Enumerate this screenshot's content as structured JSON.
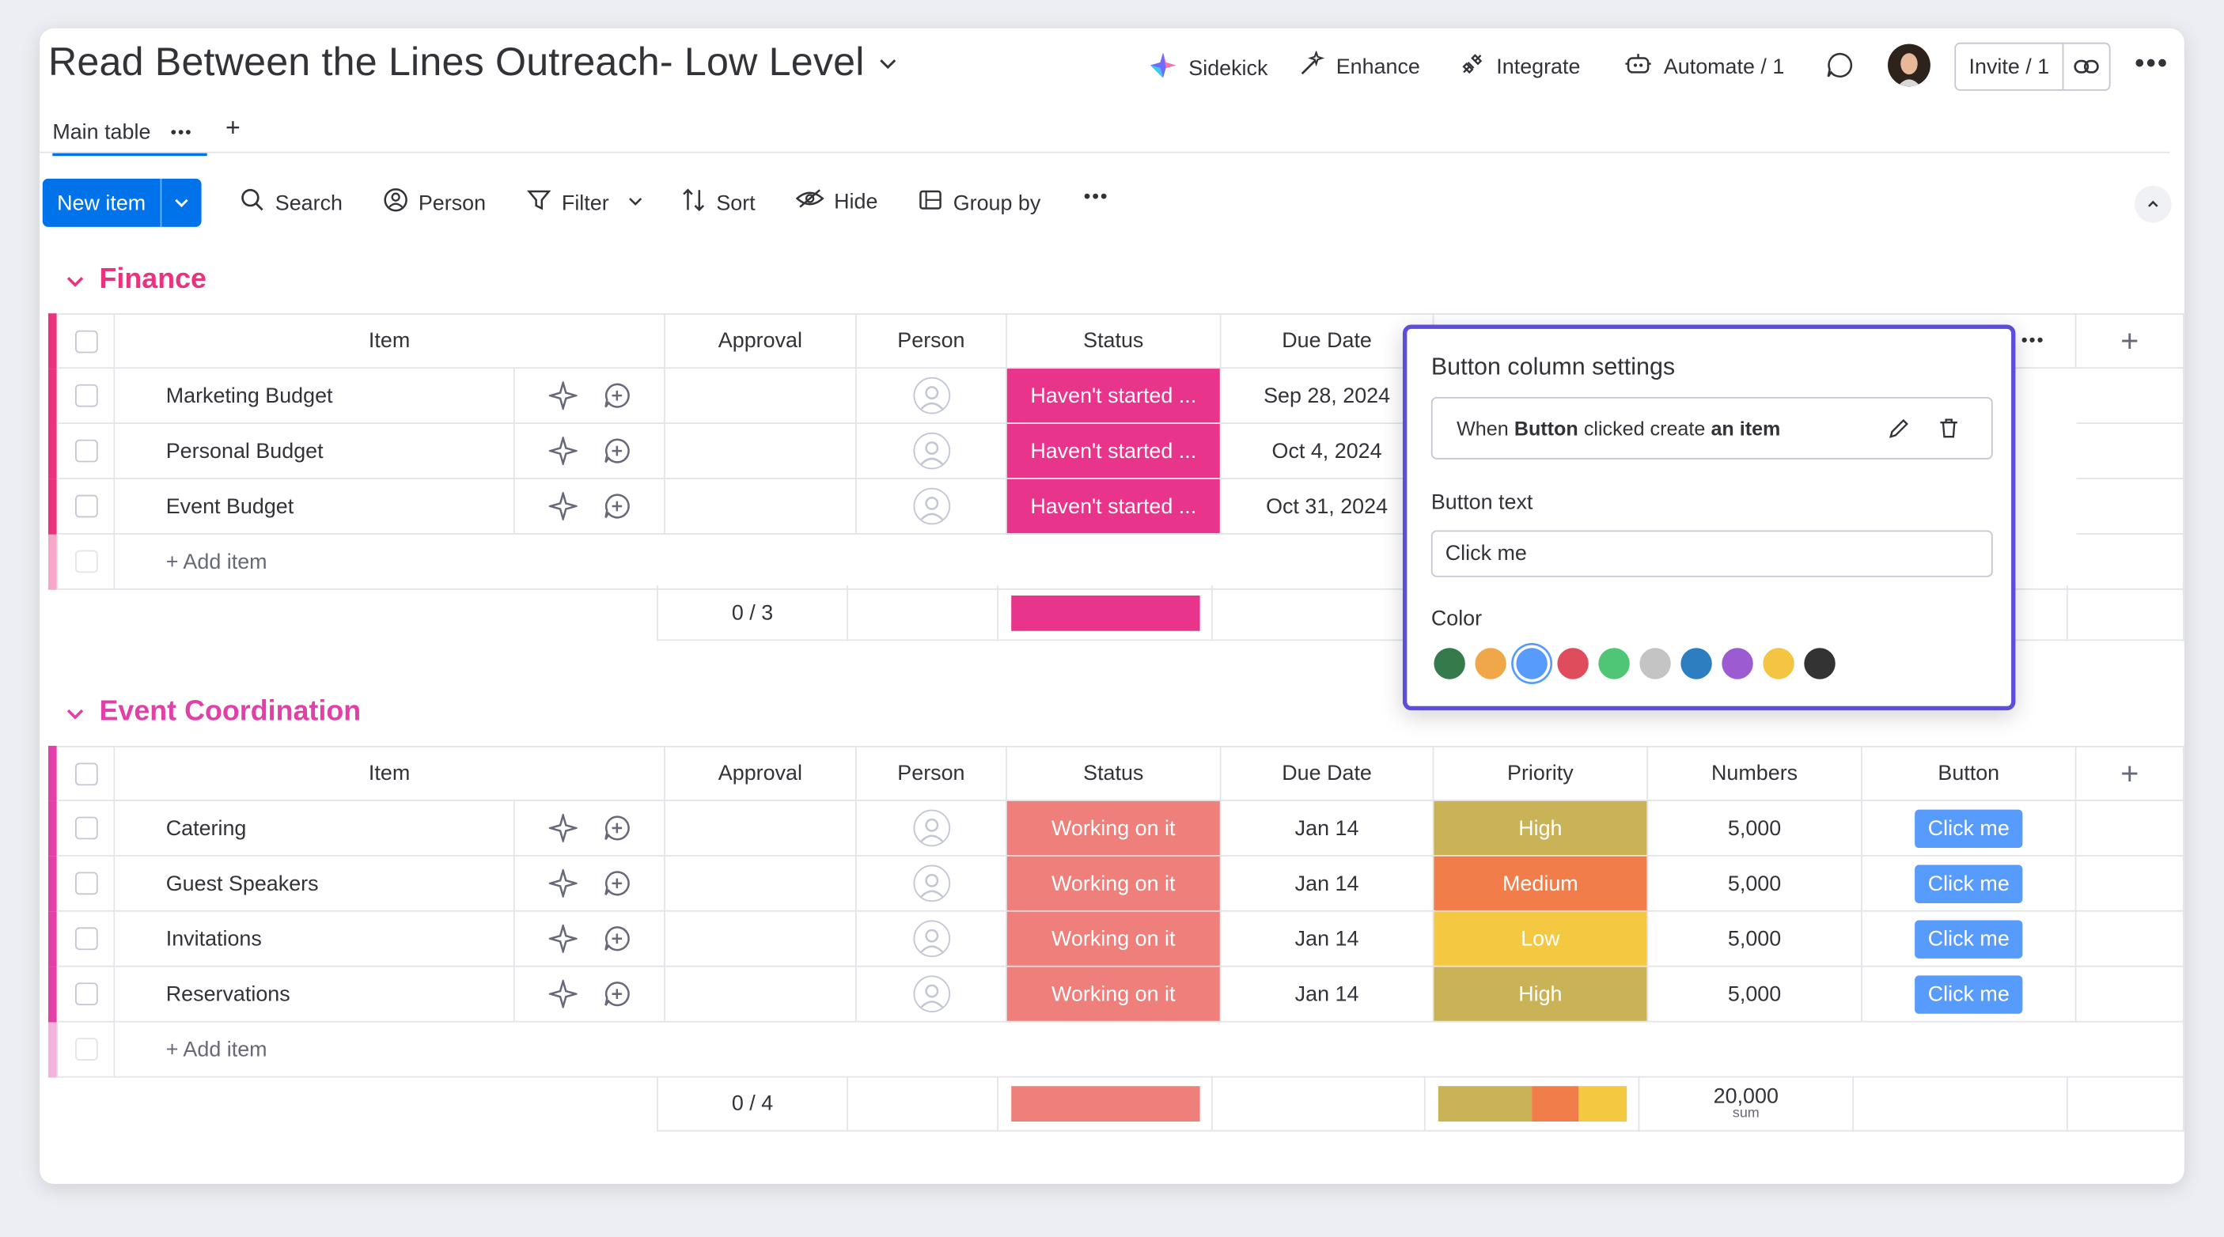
{
  "board": {
    "title": "Read Between the Lines Outreach- Low Level"
  },
  "toolbar_top": {
    "sidekick": "Sidekick",
    "enhance": "Enhance",
    "integrate": "Integrate",
    "automate": "Automate / 1",
    "invite": "Invite / 1"
  },
  "tabs": [
    {
      "label": "Main table"
    }
  ],
  "actions": {
    "new_item": "New item",
    "search": "Search",
    "person": "Person",
    "filter": "Filter",
    "sort": "Sort",
    "hide": "Hide",
    "group_by": "Group by"
  },
  "columns": [
    "Item",
    "Approval",
    "Person",
    "Status",
    "Due Date",
    "Priority",
    "Numbers",
    "Button"
  ],
  "groups": [
    {
      "name": "Finance",
      "color": "#e8347f",
      "rows": [
        {
          "item": "Marketing Budget",
          "status": "Haven't started ...",
          "due": "Sep 28, 2024"
        },
        {
          "item": "Personal Budget",
          "status": "Haven't started ...",
          "due": "Oct 4, 2024"
        },
        {
          "item": "Event Budget",
          "status": "Haven't started ...",
          "due": "Oct 31, 2024"
        }
      ],
      "add_item": "+ Add item",
      "approval_summary": "0 / 3"
    },
    {
      "name": "Event Coordination",
      "color": "#e040a8",
      "rows": [
        {
          "item": "Catering",
          "status": "Working on it",
          "due": "Jan 14",
          "priority": "High",
          "numbers": "5,000",
          "button": "Click me"
        },
        {
          "item": "Guest Speakers",
          "status": "Working on it",
          "due": "Jan 14",
          "priority": "Medium",
          "numbers": "5,000",
          "button": "Click me"
        },
        {
          "item": "Invitations",
          "status": "Working on it",
          "due": "Jan 14",
          "priority": "Low",
          "numbers": "5,000",
          "button": "Click me"
        },
        {
          "item": "Reservations",
          "status": "Working on it",
          "due": "Jan 14",
          "priority": "High",
          "numbers": "5,000",
          "button": "Click me"
        }
      ],
      "add_item": "+ Add item",
      "approval_summary": "0 / 4",
      "numbers_sum": "20,000",
      "numbers_sum_label": "sum"
    }
  ],
  "button_settings": {
    "title": "Button column settings",
    "rule_when": "When",
    "rule_button": "Button",
    "rule_clicked": "clicked create",
    "rule_an_item": "an item",
    "button_text_label": "Button text",
    "button_text_value": "Click me",
    "color_label": "Color",
    "colors": [
      "#347a4b",
      "#f0a74a",
      "#579bfc",
      "#df4c5b",
      "#4fc676",
      "#c4c4c4",
      "#2c7ec0",
      "#9d5bd2",
      "#f4c542",
      "#333333"
    ],
    "selected_color": "#579bfc"
  },
  "status_colors": {
    "havent_started": "#e8348a",
    "working": "#ee7f7a"
  },
  "priority_colors": {
    "High": "#c9b356",
    "Medium": "#f17d4a",
    "Low": "#f5c842"
  }
}
